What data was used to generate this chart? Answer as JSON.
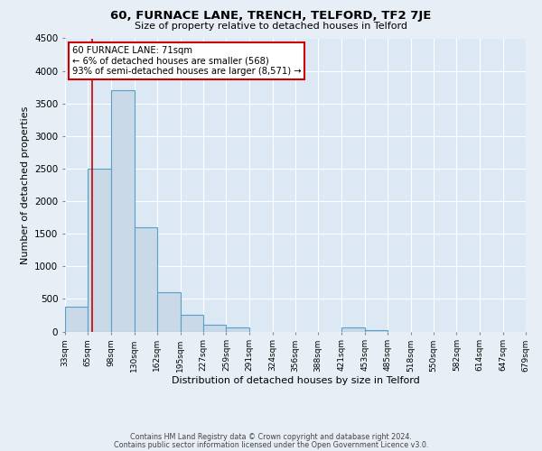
{
  "title": "60, FURNACE LANE, TRENCH, TELFORD, TF2 7JE",
  "subtitle": "Size of property relative to detached houses in Telford",
  "xlabel": "Distribution of detached houses by size in Telford",
  "ylabel": "Number of detached properties",
  "bar_left_edges": [
    33,
    65,
    98,
    130,
    162,
    195,
    227,
    259,
    291,
    324,
    356,
    388,
    421,
    453,
    485,
    518,
    550,
    582,
    614,
    647
  ],
  "bar_widths": [
    32,
    33,
    32,
    32,
    33,
    32,
    32,
    32,
    33,
    32,
    32,
    33,
    32,
    32,
    33,
    32,
    32,
    32,
    33,
    32
  ],
  "bar_heights": [
    380,
    2500,
    3700,
    1600,
    600,
    250,
    100,
    60,
    0,
    0,
    0,
    0,
    60,
    20,
    0,
    0,
    0,
    0,
    0,
    0
  ],
  "bar_color": "#c9d9e8",
  "bar_edge_color": "#5a9fc5",
  "property_line_x": 71,
  "property_line_color": "#cc0000",
  "annotation_text": "60 FURNACE LANE: 71sqm\n← 6% of detached houses are smaller (568)\n93% of semi-detached houses are larger (8,571) →",
  "annotation_box_color": "#ffffff",
  "annotation_box_edge": "#cc0000",
  "ylim": [
    0,
    4500
  ],
  "yticks": [
    0,
    500,
    1000,
    1500,
    2000,
    2500,
    3000,
    3500,
    4000,
    4500
  ],
  "tick_labels": [
    "33sqm",
    "65sqm",
    "98sqm",
    "130sqm",
    "162sqm",
    "195sqm",
    "227sqm",
    "259sqm",
    "291sqm",
    "324sqm",
    "356sqm",
    "388sqm",
    "421sqm",
    "453sqm",
    "485sqm",
    "518sqm",
    "550sqm",
    "582sqm",
    "614sqm",
    "647sqm",
    "679sqm"
  ],
  "background_color": "#dce9f5",
  "fig_background_color": "#e8eef5",
  "grid_color": "#ffffff",
  "footer_line1": "Contains HM Land Registry data © Crown copyright and database right 2024.",
  "footer_line2": "Contains public sector information licensed under the Open Government Licence v3.0."
}
